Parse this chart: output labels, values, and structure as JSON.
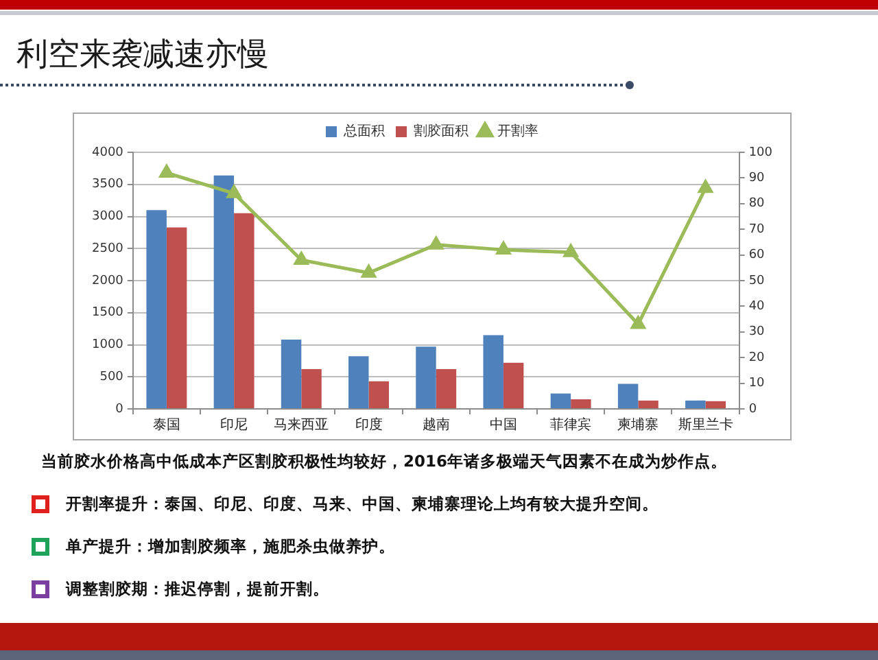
{
  "chart_data": {
    "type": "bar",
    "title": "利空来袭减速亦慢",
    "categories": [
      "泰国",
      "印尼",
      "马来西亚",
      "印度",
      "越南",
      "中国",
      "菲律宾",
      "柬埔寨",
      "斯里兰卡"
    ],
    "series": [
      {
        "name": "总面积",
        "color": "#4f81bd",
        "values": [
          3100,
          3640,
          1080,
          820,
          970,
          1150,
          240,
          390,
          130
        ]
      },
      {
        "name": "割胶面积",
        "color": "#c0504d",
        "values": [
          2830,
          3050,
          620,
          430,
          620,
          720,
          150,
          130,
          120
        ]
      },
      {
        "name": "开割率",
        "type": "line",
        "axis": "y2",
        "color": "#9bbb59",
        "values": [
          92,
          84,
          58,
          53,
          64,
          62,
          61,
          33,
          86
        ]
      }
    ],
    "marker": "triangle",
    "ylim": [
      0,
      4000
    ],
    "yticks": [
      0,
      500,
      1000,
      1500,
      2000,
      2500,
      3000,
      3500,
      4000
    ],
    "y2lim": [
      0,
      100
    ],
    "y2ticks": [
      0,
      10,
      20,
      30,
      40,
      50,
      60,
      70,
      80,
      90,
      100
    ],
    "grid": "y",
    "legend": "top",
    "annotations": [
      "当前胶水价格高中低成本产区割胶积极性均较好，2016年诸多极端天气因素不在成为炒作点。",
      "开割率提升：泰国、印尼、印度、马来、中国、柬埔寨理论上均有较大提升空间。",
      "单产提升：增加割胶频率，施肥杀虫做养护。",
      "调整割胶期：推迟停割，提前开割。"
    ]
  }
}
